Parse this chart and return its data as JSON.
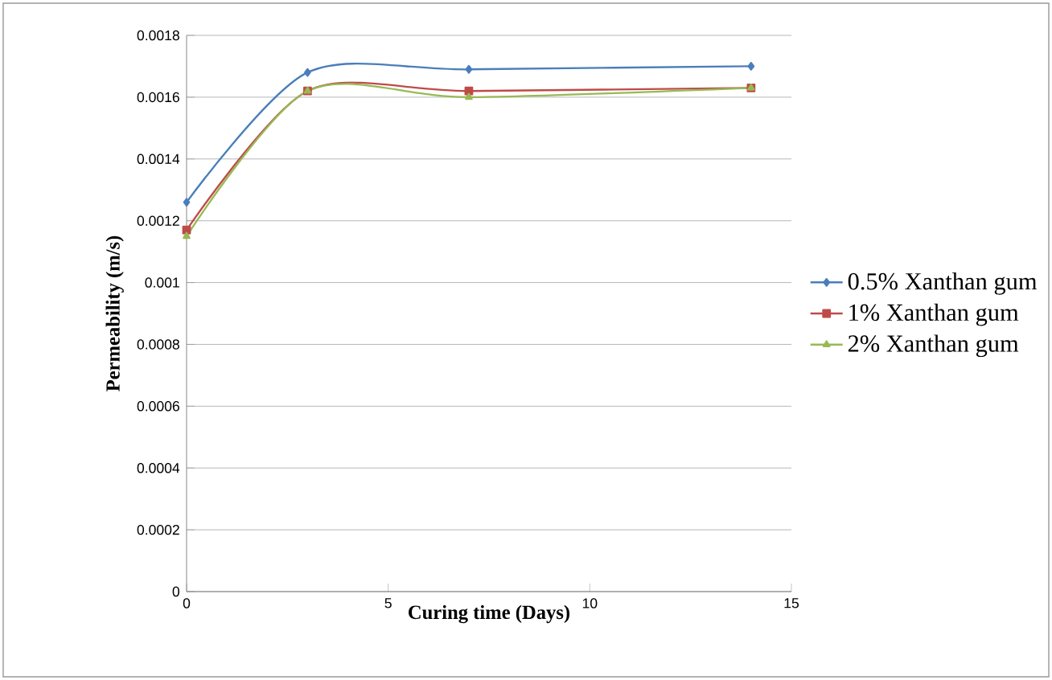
{
  "chart_data": {
    "type": "line",
    "xlabel": "Curing time (Days)",
    "ylabel": "Permeability (m/s)",
    "xlim": [
      0,
      15
    ],
    "xticks": [
      0,
      5,
      10,
      15
    ],
    "ylim": [
      0,
      0.0018
    ],
    "yticks": [
      0,
      {
        "value": 0.0002,
        "label": "0.0002"
      },
      {
        "value": 0.0004,
        "label": "0.0004"
      },
      {
        "value": 0.0006,
        "label": "0.0006"
      },
      {
        "value": 0.0008,
        "label": "0.0008"
      },
      {
        "value": 0.001,
        "label": "0.001"
      },
      {
        "value": 0.0012,
        "label": "0.0012"
      },
      {
        "value": 0.0014,
        "label": "0.0014"
      },
      {
        "value": 0.0016,
        "label": "0.0016"
      },
      {
        "value": 0.0018,
        "label": "0.0018"
      }
    ],
    "grid": "y",
    "legend": "right",
    "x": [
      0,
      3,
      7,
      14
    ],
    "series": [
      {
        "name": "0.5% Xanthan gum",
        "color": "#4a7ebb",
        "marker": "diamond",
        "values": [
          0.00126,
          0.00168,
          0.00169,
          0.0017
        ]
      },
      {
        "name": "1% Xanthan gum",
        "color": "#be4b48",
        "marker": "square",
        "values": [
          0.00117,
          0.00162,
          0.00162,
          0.00163
        ]
      },
      {
        "name": "2% Xanthan gum",
        "color": "#98b954",
        "marker": "triangle",
        "values": [
          0.00115,
          0.00162,
          0.0016,
          0.00163
        ]
      }
    ]
  }
}
